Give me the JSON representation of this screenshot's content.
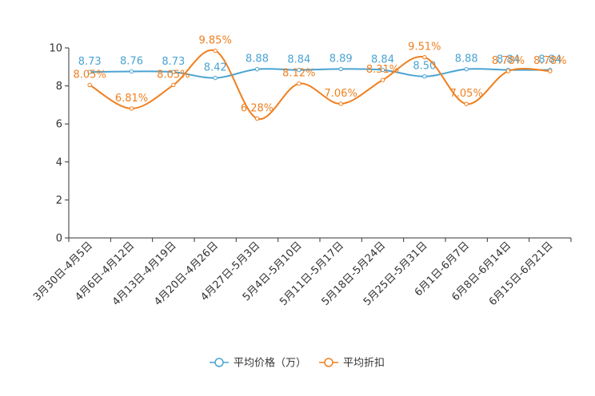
{
  "chart_data": {
    "type": "line",
    "title": "",
    "xlabel": "",
    "ylabel": "",
    "ylim": [
      0,
      10
    ],
    "yticks": [
      0,
      2,
      4,
      6,
      8,
      10
    ],
    "grid": false,
    "legend_position": "bottom",
    "categories": [
      "3月30日-4月5日",
      "4月6日-4月12日",
      "4月13日-4月19日",
      "4月20日-4月26日",
      "4月27日-5月3日",
      "5月4日-5月10日",
      "5月11日-5月17日",
      "5月18日-5月24日",
      "5月25日-5月31日",
      "6月1日-6月7日",
      "6月8日-6月14日",
      "6月15日-6月21日"
    ],
    "series": [
      {
        "name": "平均价格（万）",
        "color": "#4aa3d3",
        "values": [
          8.73,
          8.76,
          8.73,
          8.42,
          8.88,
          8.84,
          8.89,
          8.84,
          8.5,
          8.88,
          8.84,
          8.84
        ],
        "labels": [
          "8.73",
          "8.76",
          "8.73",
          "8.42",
          "8.88",
          "8.84",
          "8.89",
          "8.84",
          "8.50",
          "8.88",
          "8.84",
          "8.84"
        ]
      },
      {
        "name": "平均折扣",
        "color": "#f07f1f",
        "values": [
          8.05,
          6.81,
          8.05,
          9.85,
          6.28,
          8.12,
          7.06,
          8.31,
          9.51,
          7.05,
          8.78,
          8.78
        ],
        "labels": [
          "8.05%",
          "6.81%",
          "8.05%",
          "9.85%",
          "6.28%",
          "8.12%",
          "7.06%",
          "8.31%",
          "9.51%",
          "7.05%",
          "8.78%",
          "8.78%"
        ]
      }
    ]
  }
}
